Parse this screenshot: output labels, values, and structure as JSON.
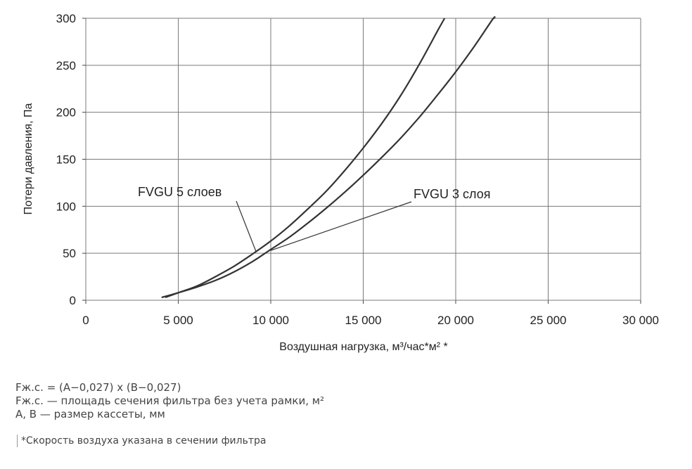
{
  "chart_data": {
    "type": "line",
    "xlabel": "Воздушная нагрузка, м³/час*м² *",
    "ylabel": "Потери давления, Па",
    "xlim": [
      0,
      30000
    ],
    "ylim": [
      0,
      300
    ],
    "x_ticks": [
      0,
      5000,
      10000,
      15000,
      20000,
      25000,
      30000
    ],
    "x_tick_labels": [
      "0",
      "5 000",
      "10 000",
      "15 000",
      "20 000",
      "25 000",
      "30 000"
    ],
    "y_ticks": [
      0,
      50,
      100,
      150,
      200,
      250,
      300
    ],
    "y_tick_labels": [
      "0",
      "50",
      "100",
      "150",
      "200",
      "250",
      "300"
    ],
    "grid": true,
    "series": [
      {
        "name": "FVGU 5 слоев",
        "color": "#333333",
        "points": [
          [
            4300,
            3
          ],
          [
            5000,
            8
          ],
          [
            6000,
            15
          ],
          [
            7000,
            25
          ],
          [
            8000,
            36
          ],
          [
            9000,
            49
          ],
          [
            10000,
            63
          ],
          [
            11000,
            79
          ],
          [
            12000,
            97
          ],
          [
            13000,
            116
          ],
          [
            14000,
            138
          ],
          [
            15000,
            162
          ],
          [
            16000,
            188
          ],
          [
            17000,
            217
          ],
          [
            18000,
            250
          ],
          [
            19000,
            286
          ],
          [
            19400,
            300
          ]
        ]
      },
      {
        "name": "FVGU 3 слоя",
        "color": "#333333",
        "points": [
          [
            4100,
            3
          ],
          [
            5000,
            8
          ],
          [
            6000,
            14
          ],
          [
            7000,
            21
          ],
          [
            8000,
            30
          ],
          [
            9000,
            41
          ],
          [
            10000,
            54
          ],
          [
            11000,
            67
          ],
          [
            12000,
            82
          ],
          [
            13000,
            98
          ],
          [
            14000,
            115
          ],
          [
            15000,
            133
          ],
          [
            16000,
            152
          ],
          [
            17000,
            172
          ],
          [
            18000,
            194
          ],
          [
            19000,
            218
          ],
          [
            20000,
            243
          ],
          [
            21000,
            270
          ],
          [
            22000,
            299
          ],
          [
            22100,
            300
          ]
        ]
      }
    ],
    "annotations": [
      {
        "text": "FVGU 5 слоев",
        "points_to": [
          9200,
          52
        ]
      },
      {
        "text": "FVGU 3 слоя",
        "points_to": [
          10000,
          53
        ]
      }
    ]
  },
  "notes": {
    "formula": "Fж.с. = (A−0,027) x (B−0,027)",
    "def_f": "Fж.с. — площадь сечения фильтра без учета рамки, м²",
    "def_ab": "A, B — размер кассеты, мм",
    "footnote": "*Скорость воздуха указана в сечении фильтра"
  }
}
